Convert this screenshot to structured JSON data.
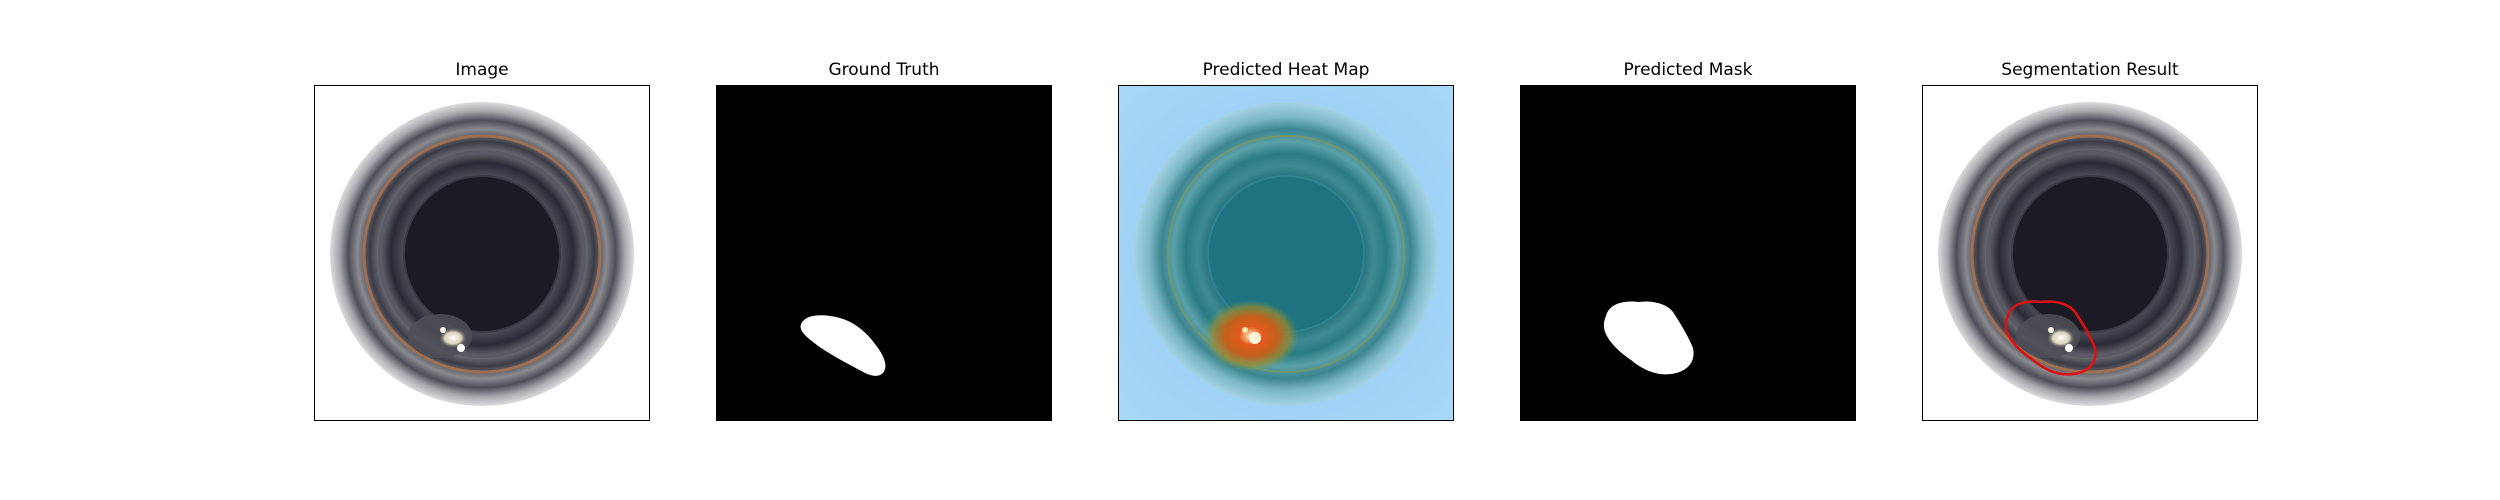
{
  "panels": [
    {
      "title": "Image"
    },
    {
      "title": "Ground Truth"
    },
    {
      "title": "Predicted Heat Map"
    },
    {
      "title": "Predicted Mask"
    },
    {
      "title": "Segmentation Result"
    }
  ],
  "colors": {
    "background": "#ffffff",
    "mask_bg": "#000000",
    "mask_fg": "#ffffff",
    "heat_bg": "#9fd0f5",
    "heat_ring": "#2a7e8a",
    "heat_hot": "#d44a18",
    "contour": "#e01010",
    "frame": "#000000"
  }
}
